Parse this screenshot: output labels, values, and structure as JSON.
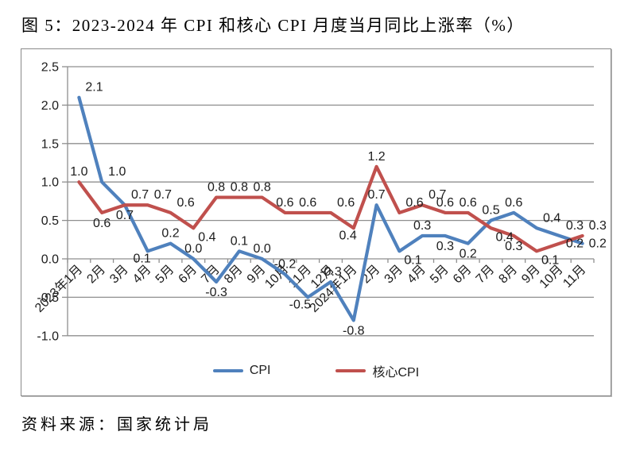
{
  "title": "图 5：2023-2024 年 CPI 和核心 CPI 月度当月同比上涨率（%）",
  "source": "资料来源：国家统计局",
  "colors": {
    "cpi_line": "#4F81BD",
    "core_cpi_line": "#C0504D",
    "gridline": "#8f8f8f",
    "axis": "#8f8f8f",
    "label_text": "#1c1c1c",
    "frame_border": "#8a8a8a"
  },
  "chart_data": {
    "type": "line",
    "title": "图 5：2023-2024 年 CPI 和核心 CPI 月度当月同比上涨率（%）",
    "xlabel": "",
    "ylabel": "",
    "ylim": [
      -1.0,
      2.5
    ],
    "ytick_step": 0.5,
    "yticks": [
      "2.5",
      "2.0",
      "1.5",
      "1.0",
      "0.5",
      "0.0",
      "-0.5",
      "-1.0"
    ],
    "grid": true,
    "legend_position": "bottom",
    "categories": [
      "2023年1月",
      "2月",
      "3月",
      "4月",
      "5月",
      "6月",
      "7月",
      "8月",
      "9月",
      "10月",
      "11月",
      "12月",
      "2024年1月",
      "2月",
      "3月",
      "4月",
      "5月",
      "6月",
      "7月",
      "8月",
      "9月",
      "10月",
      "11月"
    ],
    "series": [
      {
        "name": "CPI",
        "color": "#4F81BD",
        "values": [
          2.1,
          1.0,
          0.7,
          0.1,
          0.2,
          0.0,
          -0.3,
          0.1,
          0.0,
          -0.2,
          -0.5,
          -0.3,
          -0.8,
          0.7,
          0.1,
          0.3,
          0.3,
          0.2,
          0.5,
          0.6,
          0.4,
          0.3,
          0.2
        ],
        "label_pos": [
          "ar",
          "ar",
          "b",
          "bl",
          "a",
          "a",
          "b",
          "a",
          "a",
          "a",
          "bl",
          "a",
          "b",
          "a",
          "br",
          "a",
          "b",
          "b",
          "a",
          "a",
          "ar",
          "ar",
          "r"
        ]
      },
      {
        "name": "核心CPI",
        "color": "#C0504D",
        "values": [
          1.0,
          0.6,
          0.7,
          0.7,
          0.6,
          0.4,
          0.8,
          0.8,
          0.8,
          0.6,
          0.6,
          0.6,
          0.4,
          1.2,
          0.6,
          0.7,
          0.6,
          0.6,
          0.4,
          0.3,
          0.1,
          0.2,
          0.3
        ],
        "label_pos": [
          "a",
          "b",
          "ar",
          "ar",
          "ar",
          "br",
          "a",
          "a",
          "a",
          "a",
          "a",
          "ar",
          "bl",
          "a",
          "ar",
          "ar",
          "a",
          "a",
          "br",
          "b",
          "br",
          "r",
          "ar"
        ]
      }
    ]
  }
}
